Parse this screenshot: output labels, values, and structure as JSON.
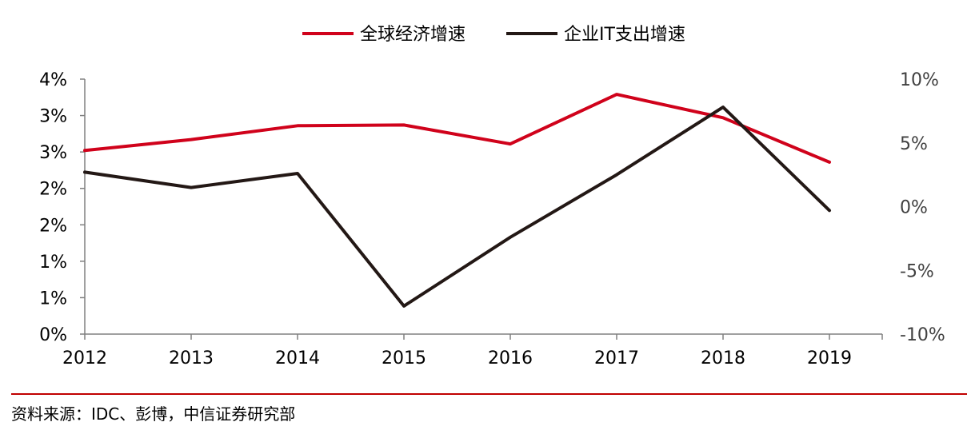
{
  "chart_data": {
    "type": "line",
    "categories": [
      "2012",
      "2013",
      "2014",
      "2015",
      "2016",
      "2017",
      "2018",
      "2019"
    ],
    "series": [
      {
        "name": "全球经济增速",
        "axis": "left",
        "color": "#d0021b",
        "values": [
          2.52,
          2.67,
          2.86,
          2.87,
          2.61,
          3.29,
          2.97,
          2.36
        ]
      },
      {
        "name": "企业IT支出增速",
        "axis": "right",
        "color": "#231815",
        "values": [
          2.7,
          1.5,
          2.6,
          -7.8,
          -2.4,
          2.5,
          7.8,
          -0.3
        ]
      }
    ],
    "left_axis": {
      "ylim": [
        0,
        3.5
      ],
      "tick_values": [
        0,
        0.5,
        1,
        1.5,
        2,
        2.5,
        3,
        3.5
      ],
      "tick_labels": [
        "0%",
        "1%",
        "1%",
        "2%",
        "2%",
        "3%",
        "3%",
        "4%"
      ]
    },
    "right_axis": {
      "ylim": [
        -10,
        10
      ],
      "tick_values": [
        -10,
        -5,
        0,
        5,
        10
      ],
      "tick_labels": [
        "-10%",
        "-5%",
        "0%",
        "5%",
        "10%"
      ]
    },
    "legend_position": "top-center",
    "grid": false
  },
  "source_text": "资料来源：IDC、彭博，中信证券研究部",
  "rule_color": "#c00000"
}
